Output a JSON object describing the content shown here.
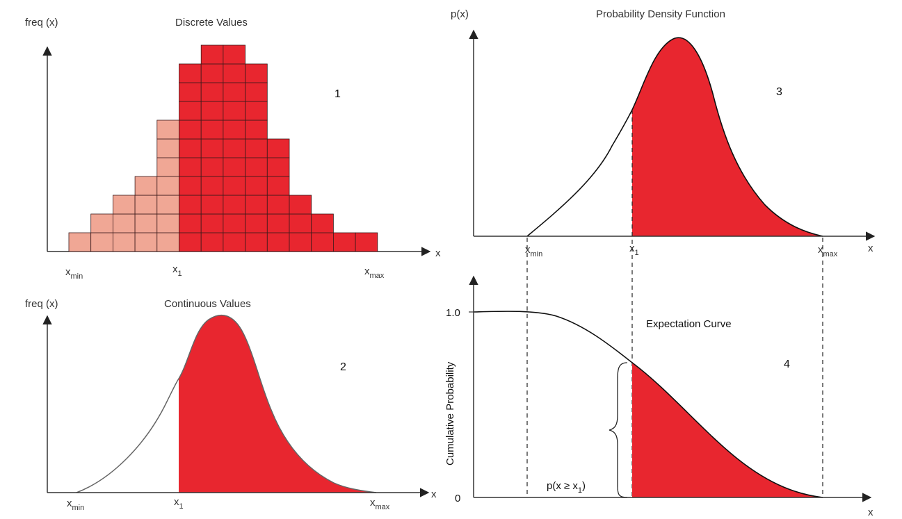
{
  "colors": {
    "dark_red": "#e8262f",
    "light_red": "#f0a795",
    "axis": "#333333",
    "curve": "#222222"
  },
  "panel1": {
    "ylabel": "freq (x)",
    "title": "Discrete Values",
    "number": "1",
    "xaxis_label": "x",
    "x_min": "x",
    "x_min_sub": "min",
    "x_1": "x",
    "x_1_sub": "1",
    "x_max": "x",
    "x_max_sub": "max",
    "column_counts": [
      1,
      2,
      3,
      4,
      7,
      10,
      11,
      11,
      10,
      6,
      3,
      2,
      1,
      1
    ],
    "light_columns": 5
  },
  "panel2": {
    "ylabel": "freq (x)",
    "title": "Continuous Values",
    "number": "2",
    "xaxis_label": "x",
    "x_min": "x",
    "x_min_sub": "min",
    "x_1": "x",
    "x_1_sub": "1",
    "x_max": "x",
    "x_max_sub": "max"
  },
  "panel3": {
    "ylabel": "p(x)",
    "title": "Probability Density Function",
    "number": "3",
    "xaxis_label": "x",
    "x_min": "x",
    "x_min_sub": "min",
    "x_1": "x",
    "x_1_sub": "1",
    "x_max": "x",
    "x_max_sub": "max"
  },
  "panel4": {
    "ylabel": "Cumulative Probability",
    "title": "Expectation Curve",
    "number": "4",
    "xaxis_label": "x",
    "y_top": "1.0",
    "y_bottom": "0",
    "brace_label": "p(x ≥ x",
    "brace_label_sub": "1",
    "brace_label_end": ")"
  }
}
